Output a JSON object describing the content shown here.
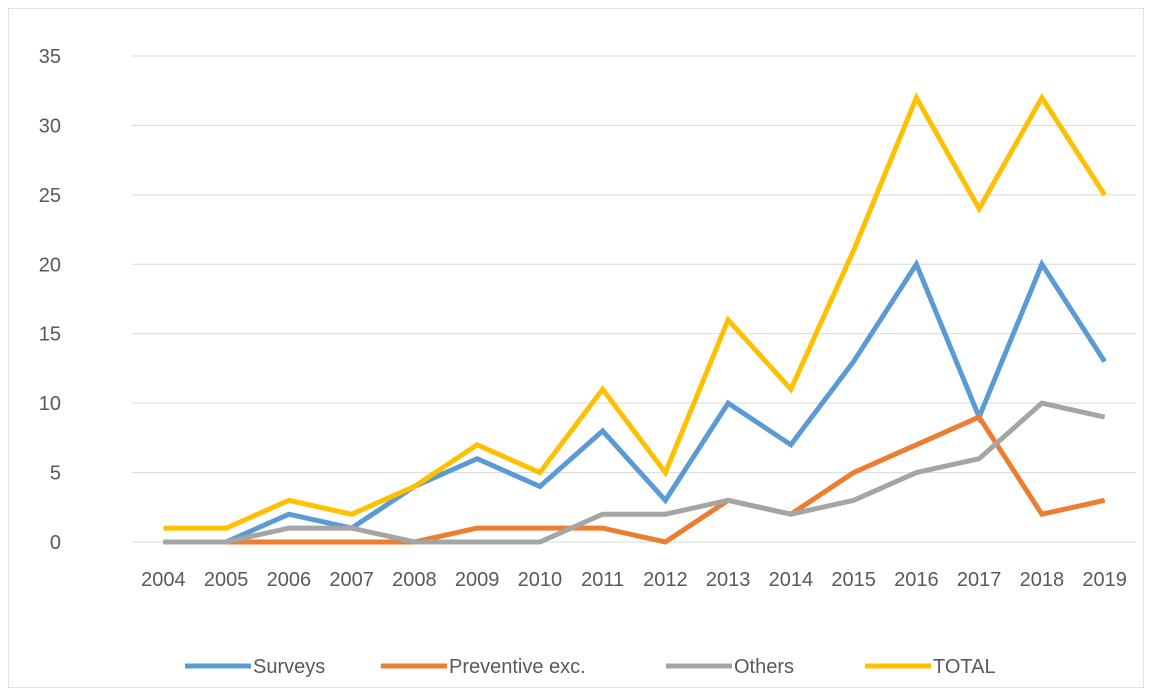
{
  "chart_data": {
    "type": "line",
    "title": "",
    "xlabel": "",
    "ylabel": "",
    "ylim": [
      0,
      35
    ],
    "y_ticks": [
      "0",
      "5",
      "10",
      "15",
      "20",
      "25",
      "30",
      "35"
    ],
    "grid": true,
    "legend_position": "bottom",
    "categories": [
      "2004",
      "2005",
      "2006",
      "2007",
      "2008",
      "2009",
      "2010",
      "2011",
      "2012",
      "2013",
      "2014",
      "2015",
      "2016",
      "2017",
      "2018",
      "2019"
    ],
    "series": [
      {
        "name": "Surveys",
        "color": "#5b9bd5",
        "values": [
          0,
          0,
          2,
          1,
          4,
          6,
          4,
          8,
          3,
          10,
          7,
          13,
          20,
          9,
          20,
          13
        ]
      },
      {
        "name": "Preventive exc.",
        "color": "#ed7d31",
        "values": [
          0,
          0,
          0,
          0,
          0,
          1,
          1,
          1,
          0,
          3,
          2,
          5,
          7,
          9,
          2,
          3
        ]
      },
      {
        "name": "Others",
        "color": "#a5a5a5",
        "values": [
          0,
          0,
          1,
          1,
          0,
          0,
          0,
          2,
          2,
          3,
          2,
          3,
          5,
          6,
          10,
          9
        ]
      },
      {
        "name": "TOTAL",
        "color": "#ffc000",
        "values": [
          1,
          1,
          3,
          2,
          4,
          7,
          5,
          11,
          5,
          16,
          11,
          21,
          32,
          24,
          32,
          25
        ]
      }
    ]
  }
}
